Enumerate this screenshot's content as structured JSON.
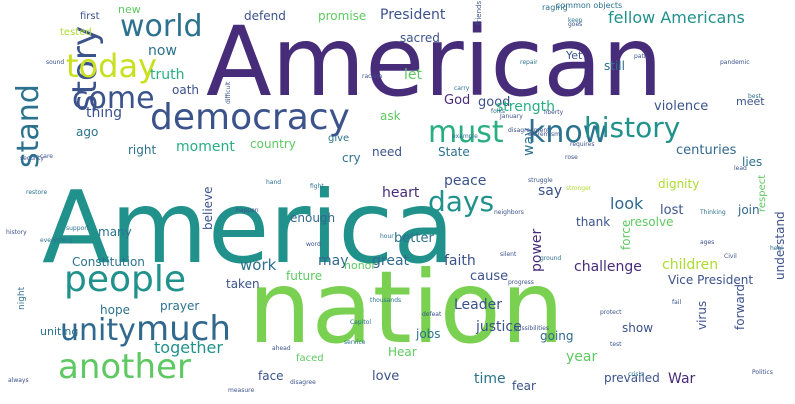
{
  "palette": {
    "dark_purple": "#472c7a",
    "indigo": "#3b528b",
    "slate_blue": "#31688e",
    "steel_blue": "#2c728e",
    "teal": "#21918c",
    "sea_green": "#28ae80",
    "green": "#5ec962",
    "lime": "#addc30",
    "yellow_green": "#c8e020",
    "background": "#ffffff"
  },
  "words": [
    {
      "text": "America",
      "color": "#21918c",
      "size": 100
    },
    {
      "text": "American",
      "color": "#472c7a",
      "size": 96
    },
    {
      "text": "nation",
      "color": "#7ad151",
      "size": 100
    },
    {
      "text": "democracy",
      "color": "#3b528b",
      "size": 36
    },
    {
      "text": "people",
      "color": "#21918c",
      "size": 36
    },
    {
      "text": "story",
      "color": "#3b528b",
      "size": 34
    },
    {
      "text": "stand",
      "color": "#2c728e",
      "size": 30
    },
    {
      "text": "today",
      "color": "#c8e020",
      "size": 32
    },
    {
      "text": "world",
      "color": "#2c728e",
      "size": 30
    },
    {
      "text": "come",
      "color": "#3b528b",
      "size": 30
    },
    {
      "text": "unity",
      "color": "#31688e",
      "size": 30
    },
    {
      "text": "much",
      "color": "#31688e",
      "size": 34
    },
    {
      "text": "another",
      "color": "#5ec962",
      "size": 34
    },
    {
      "text": "must",
      "color": "#28ae80",
      "size": 30
    },
    {
      "text": "know",
      "color": "#2c728e",
      "size": 30
    },
    {
      "text": "history",
      "color": "#21918c",
      "size": 28
    },
    {
      "text": "days",
      "color": "#21918c",
      "size": 28
    },
    {
      "text": "fellow Americans",
      "color": "#21918c",
      "size": 16
    },
    {
      "text": "President",
      "color": "#3b528b",
      "size": 14
    },
    {
      "text": "defend",
      "color": "#3b528b",
      "size": 12
    },
    {
      "text": "promise",
      "color": "#5ec962",
      "size": 12
    },
    {
      "text": "new",
      "color": "#5ec962",
      "size": 11
    },
    {
      "text": "first",
      "color": "#3b528b",
      "size": 10
    },
    {
      "text": "tested",
      "color": "#addc30",
      "size": 10
    },
    {
      "text": "common objects",
      "color": "#2c728e",
      "size": 8
    },
    {
      "text": "now",
      "color": "#2c728e",
      "size": 14
    },
    {
      "text": "truth",
      "color": "#28ae80",
      "size": 14
    },
    {
      "text": "thing",
      "color": "#3b528b",
      "size": 14
    },
    {
      "text": "oath",
      "color": "#3b528b",
      "size": 12
    },
    {
      "text": "ago",
      "color": "#2c728e",
      "size": 12
    },
    {
      "text": "right",
      "color": "#2c728e",
      "size": 12
    },
    {
      "text": "moment",
      "color": "#28ae80",
      "size": 14
    },
    {
      "text": "country",
      "color": "#5ec962",
      "size": 12
    },
    {
      "text": "give",
      "color": "#2c728e",
      "size": 10
    },
    {
      "text": "cry",
      "color": "#2c728e",
      "size": 12
    },
    {
      "text": "sacred",
      "color": "#3b528b",
      "size": 12
    },
    {
      "text": "let",
      "color": "#5ec962",
      "size": 14
    },
    {
      "text": "God",
      "color": "#472c7a",
      "size": 13
    },
    {
      "text": "good",
      "color": "#3b528b",
      "size": 13
    },
    {
      "text": "ask",
      "color": "#5ec962",
      "size": 12
    },
    {
      "text": "strength",
      "color": "#28ae80",
      "size": 14
    },
    {
      "text": "still",
      "color": "#2c728e",
      "size": 12
    },
    {
      "text": "Yet",
      "color": "#3b528b",
      "size": 11
    },
    {
      "text": "violence",
      "color": "#3b528b",
      "size": 13
    },
    {
      "text": "meet",
      "color": "#3b528b",
      "size": 11
    },
    {
      "text": "need",
      "color": "#3b528b",
      "size": 12
    },
    {
      "text": "State",
      "color": "#2c728e",
      "size": 12
    },
    {
      "text": "centuries",
      "color": "#31688e",
      "size": 13
    },
    {
      "text": "way",
      "color": "#2c728e",
      "size": 14
    },
    {
      "text": "peace",
      "color": "#3b528b",
      "size": 14
    },
    {
      "text": "say",
      "color": "#3b528b",
      "size": 14
    },
    {
      "text": "dignity",
      "color": "#addc30",
      "size": 12
    },
    {
      "text": "lost",
      "color": "#3b528b",
      "size": 13
    },
    {
      "text": "join",
      "color": "#31688e",
      "size": 12
    },
    {
      "text": "lies",
      "color": "#2c728e",
      "size": 12
    },
    {
      "text": "look",
      "color": "#31688e",
      "size": 16
    },
    {
      "text": "heart",
      "color": "#472c7a",
      "size": 14
    },
    {
      "text": "enough",
      "color": "#31688e",
      "size": 12
    },
    {
      "text": "thank",
      "color": "#3b528b",
      "size": 12
    },
    {
      "text": "resolve",
      "color": "#5ec962",
      "size": 12
    },
    {
      "text": "believe",
      "color": "#3b528b",
      "size": 12
    },
    {
      "text": "many",
      "color": "#2c728e",
      "size": 12
    },
    {
      "text": "better",
      "color": "#2c728e",
      "size": 13
    },
    {
      "text": "faith",
      "color": "#3b528b",
      "size": 14
    },
    {
      "text": "may",
      "color": "#31688e",
      "size": 14
    },
    {
      "text": "great",
      "color": "#31688e",
      "size": 14
    },
    {
      "text": "work",
      "color": "#2c728e",
      "size": 15
    },
    {
      "text": "Constitution",
      "color": "#2c728e",
      "size": 12
    },
    {
      "text": "taken",
      "color": "#3b528b",
      "size": 12
    },
    {
      "text": "future",
      "color": "#5ec962",
      "size": 12
    },
    {
      "text": "honor",
      "color": "#5ec962",
      "size": 11
    },
    {
      "text": "cause",
      "color": "#3b528b",
      "size": 13
    },
    {
      "text": "challenge",
      "color": "#472c7a",
      "size": 14
    },
    {
      "text": "children",
      "color": "#addc30",
      "size": 14
    },
    {
      "text": "Vice President",
      "color": "#3b528b",
      "size": 12
    },
    {
      "text": "power",
      "color": "#472c7a",
      "size": 14
    },
    {
      "text": "Leader",
      "color": "#3b528b",
      "size": 14
    },
    {
      "text": "justice",
      "color": "#3b528b",
      "size": 14
    },
    {
      "text": "hope",
      "color": "#2c728e",
      "size": 12
    },
    {
      "text": "prayer",
      "color": "#2c728e",
      "size": 12
    },
    {
      "text": "uniting",
      "color": "#2c728e",
      "size": 11
    },
    {
      "text": "jobs",
      "color": "#2c728e",
      "size": 12
    },
    {
      "text": "going",
      "color": "#31688e",
      "size": 12
    },
    {
      "text": "show",
      "color": "#3b528b",
      "size": 12
    },
    {
      "text": "force",
      "color": "#5ec962",
      "size": 12
    },
    {
      "text": "together",
      "color": "#21918c",
      "size": 16
    },
    {
      "text": "face",
      "color": "#3b528b",
      "size": 12
    },
    {
      "text": "love",
      "color": "#3b528b",
      "size": 13
    },
    {
      "text": "time",
      "color": "#2c728e",
      "size": 14
    },
    {
      "text": "Hear",
      "color": "#5ec962",
      "size": 12
    },
    {
      "text": "year",
      "color": "#5ec962",
      "size": 14
    },
    {
      "text": "fear",
      "color": "#3b528b",
      "size": 12
    },
    {
      "text": "prevailed",
      "color": "#3b528b",
      "size": 12
    },
    {
      "text": "War",
      "color": "#472c7a",
      "size": 14
    },
    {
      "text": "virus",
      "color": "#3b528b",
      "size": 12
    },
    {
      "text": "forward",
      "color": "#3b528b",
      "size": 12
    },
    {
      "text": "understand",
      "color": "#3b528b",
      "size": 12
    },
    {
      "text": "respect",
      "color": "#5ec962",
      "size": 10
    },
    {
      "text": "night",
      "color": "#2c728e",
      "size": 9
    },
    {
      "text": "faced",
      "color": "#5ec962",
      "size": 10
    },
    {
      "text": "friends",
      "color": "#3b528b",
      "size": 7
    },
    {
      "text": "raging",
      "color": "#2c728e",
      "size": 8
    },
    {
      "text": "racism",
      "color": "#3b528b",
      "size": 6
    },
    {
      "text": "repair",
      "color": "#2c728e",
      "size": 6
    },
    {
      "text": "January",
      "color": "#3b528b",
      "size": 6
    },
    {
      "text": "liberty",
      "color": "#3b528b",
      "size": 6
    },
    {
      "text": "struggle",
      "color": "#3b528b",
      "size": 6
    },
    {
      "text": "stronger",
      "color": "#addc30",
      "size": 6
    },
    {
      "text": "Thinking",
      "color": "#2c728e",
      "size": 6
    },
    {
      "text": "Civil",
      "color": "#3b528b",
      "size": 6
    },
    {
      "text": "possibilities",
      "color": "#3b528b",
      "size": 6
    },
    {
      "text": "Capitol",
      "color": "#2c728e",
      "size": 6
    },
    {
      "text": "support",
      "color": "#2c728e",
      "size": 6
    },
    {
      "text": "everything",
      "color": "#2c728e",
      "size": 6
    },
    {
      "text": "disagree",
      "color": "#3b528b",
      "size": 6
    },
    {
      "text": "measure",
      "color": "#3b528b",
      "size": 6
    },
    {
      "text": "difficult",
      "color": "#3b528b",
      "size": 6
    },
    {
      "text": "ground",
      "color": "#2c728e",
      "size": 6
    },
    {
      "text": "thousands",
      "color": "#2c728e",
      "size": 6
    },
    {
      "text": "defeat",
      "color": "#3b528b",
      "size": 6
    },
    {
      "text": "example",
      "color": "#2c728e",
      "size": 6
    },
    {
      "text": "hand",
      "color": "#2c728e",
      "size": 6
    },
    {
      "text": "fight",
      "color": "#2c728e",
      "size": 6
    },
    {
      "text": "security",
      "color": "#3b528b",
      "size": 6
    },
    {
      "text": "happen",
      "color": "#3b528b",
      "size": 6
    },
    {
      "text": "requires",
      "color": "#3b528b",
      "size": 6
    },
    {
      "text": "sound",
      "color": "#3b528b",
      "size": 6
    },
    {
      "text": "ahead",
      "color": "#3b528b",
      "size": 6
    },
    {
      "text": "Politics",
      "color": "#3b528b",
      "size": 6
    },
    {
      "text": "service",
      "color": "#2c728e",
      "size": 6
    },
    {
      "text": "protect",
      "color": "#3b528b",
      "size": 6
    },
    {
      "text": "hour",
      "color": "#2c728e",
      "size": 6
    },
    {
      "text": "progress",
      "color": "#3b528b",
      "size": 6
    },
    {
      "text": "silent",
      "color": "#3b528b",
      "size": 6
    },
    {
      "text": "test",
      "color": "#3b528b",
      "size": 6
    },
    {
      "text": "crisis",
      "color": "#2c728e",
      "size": 6
    },
    {
      "text": "heal",
      "color": "#2c728e",
      "size": 6
    },
    {
      "text": "ages",
      "color": "#3b528b",
      "size": 6
    },
    {
      "text": "history",
      "color": "#3b528b",
      "size": 6
    },
    {
      "text": "pandemic",
      "color": "#3b528b",
      "size": 6
    },
    {
      "text": "best",
      "color": "#2c728e",
      "size": 6
    },
    {
      "text": "goes",
      "color": "#3b528b",
      "size": 6
    },
    {
      "text": "word",
      "color": "#3b528b",
      "size": 6
    },
    {
      "text": "path",
      "color": "#3b528b",
      "size": 6
    },
    {
      "text": "fail",
      "color": "#3b528b",
      "size": 6
    },
    {
      "text": "neighbors",
      "color": "#3b528b",
      "size": 6
    },
    {
      "text": "disagreement",
      "color": "#3b528b",
      "size": 6
    },
    {
      "text": "restore",
      "color": "#2c728e",
      "size": 6
    },
    {
      "text": "always",
      "color": "#3b528b",
      "size": 6
    },
    {
      "text": "care",
      "color": "#3b528b",
      "size": 6
    },
    {
      "text": "lead",
      "color": "#3b528b",
      "size": 6
    },
    {
      "text": "keep",
      "color": "#2c728e",
      "size": 6
    },
    {
      "text": "carry",
      "color": "#2c728e",
      "size": 6
    },
    {
      "text": "folks",
      "color": "#2c728e",
      "size": 6
    },
    {
      "text": "extremism",
      "color": "#3b528b",
      "size": 6
    },
    {
      "text": "rose",
      "color": "#3b528b",
      "size": 6
    }
  ]
}
